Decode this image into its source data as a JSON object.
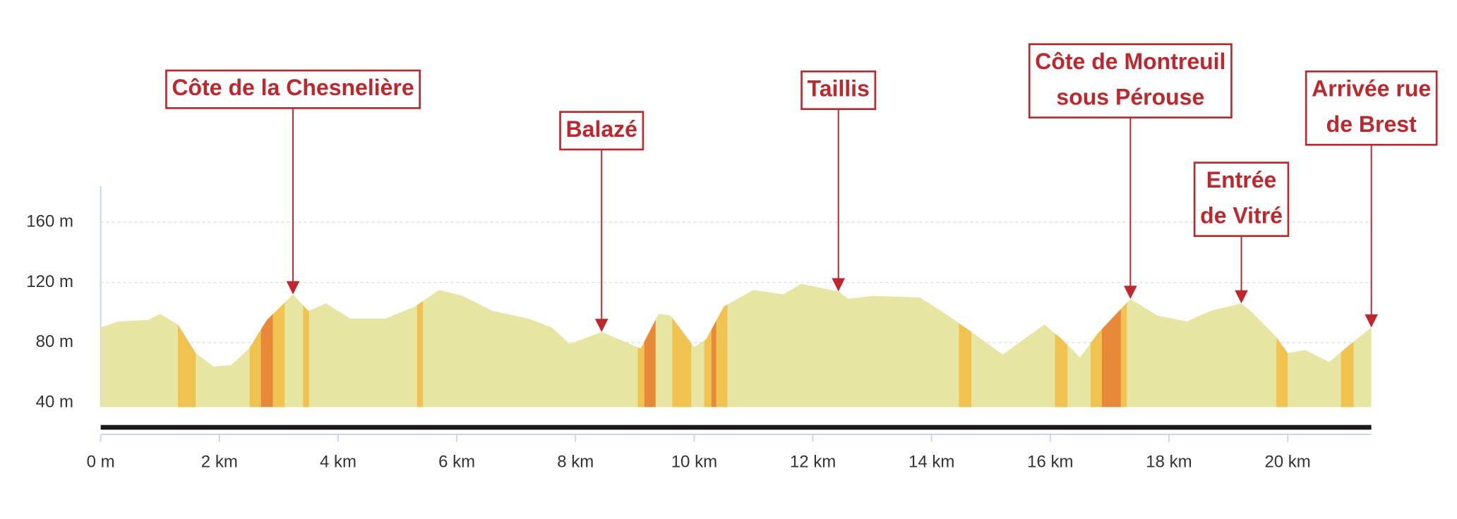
{
  "chart_data": {
    "type": "area",
    "x": [
      0,
      0.3,
      0.8,
      1.0,
      1.3,
      1.6,
      1.9,
      2.2,
      2.5,
      2.8,
      3.24,
      3.5,
      3.8,
      4.2,
      4.8,
      5.3,
      5.7,
      6.1,
      6.6,
      7.2,
      7.6,
      7.9,
      8.44,
      8.8,
      9.1,
      9.4,
      9.6,
      10.0,
      10.2,
      10.5,
      11.0,
      11.5,
      11.8,
      12.43,
      12.6,
      13.0,
      13.8,
      14.2,
      14.6,
      15.2,
      15.9,
      16.2,
      16.5,
      16.8,
      17.35,
      17.8,
      18.3,
      18.7,
      19.22,
      19.4,
      19.8,
      20.0,
      20.3,
      20.7,
      21.0,
      21.41
    ],
    "values": [
      90,
      94,
      95,
      99,
      92,
      73,
      64,
      65,
      76,
      95,
      112,
      101,
      106,
      96,
      96,
      104,
      115,
      111,
      101,
      96,
      90,
      79,
      87,
      81,
      76,
      99,
      98,
      77,
      82,
      104,
      115,
      112,
      119,
      114,
      109,
      111,
      110,
      100,
      89,
      72,
      92,
      82,
      70,
      86,
      109,
      98,
      94,
      101,
      106,
      100,
      84,
      73,
      75,
      67,
      77,
      90
    ],
    "color": "#e7e5a2",
    "segments": [
      {
        "x0": 1.3,
        "x1": 1.6,
        "color": "#f0c250"
      },
      {
        "x0": 2.51,
        "x1": 2.7,
        "color": "#f0c250"
      },
      {
        "x0": 2.7,
        "x1": 2.9,
        "color": "#e8893a"
      },
      {
        "x0": 2.9,
        "x1": 3.1,
        "color": "#f0c250"
      },
      {
        "x0": 3.41,
        "x1": 3.51,
        "color": "#f0c250"
      },
      {
        "x0": 5.33,
        "x1": 5.43,
        "color": "#f0c250"
      },
      {
        "x0": 9.05,
        "x1": 9.16,
        "color": "#f0c250"
      },
      {
        "x0": 9.16,
        "x1": 9.35,
        "color": "#e8893a"
      },
      {
        "x0": 9.63,
        "x1": 9.95,
        "color": "#f0c250"
      },
      {
        "x0": 10.17,
        "x1": 10.29,
        "color": "#f0c250"
      },
      {
        "x0": 10.29,
        "x1": 10.37,
        "color": "#e8893a"
      },
      {
        "x0": 10.37,
        "x1": 10.56,
        "color": "#f0c250"
      },
      {
        "x0": 14.46,
        "x1": 14.67,
        "color": "#f0c250"
      },
      {
        "x0": 16.08,
        "x1": 16.29,
        "color": "#f0c250"
      },
      {
        "x0": 16.68,
        "x1": 16.87,
        "color": "#f0c250"
      },
      {
        "x0": 16.87,
        "x1": 17.19,
        "color": "#e8893a"
      },
      {
        "x0": 17.19,
        "x1": 17.29,
        "color": "#f0c250"
      },
      {
        "x0": 19.81,
        "x1": 20.0,
        "color": "#f0c250"
      },
      {
        "x0": 20.9,
        "x1": 21.11,
        "color": "#f0c250"
      }
    ],
    "annotations": [
      {
        "lines": [
          "Côte de la Chesnelière"
        ],
        "x": 3.24,
        "y": 112
      },
      {
        "lines": [
          "Balazé"
        ],
        "x": 8.44,
        "y": 87
      },
      {
        "lines": [
          "Taillis"
        ],
        "x": 12.43,
        "y": 114
      },
      {
        "lines": [
          "Côte de Montreuil",
          "sous Pérouse"
        ],
        "x": 17.35,
        "y": 109
      },
      {
        "lines": [
          "Entrée",
          "de Vitré"
        ],
        "x": 19.22,
        "y": 106
      },
      {
        "lines": [
          "Arrivée rue",
          "de Brest"
        ],
        "x": 21.41,
        "y": 90
      }
    ],
    "annotation_color": "#c0272d",
    "xlim": [
      0,
      21.41
    ],
    "ylim": [
      37,
      184
    ],
    "xticks": [
      {
        "value": 0,
        "label": "0 m"
      },
      {
        "value": 2,
        "label": "2 km"
      },
      {
        "value": 4,
        "label": "4 km"
      },
      {
        "value": 6,
        "label": "6 km"
      },
      {
        "value": 8,
        "label": "8 km"
      },
      {
        "value": 10,
        "label": "10 km"
      },
      {
        "value": 12,
        "label": "12 km"
      },
      {
        "value": 14,
        "label": "14 km"
      },
      {
        "value": 16,
        "label": "16 km"
      },
      {
        "value": 18,
        "label": "18 km"
      },
      {
        "value": 20,
        "label": "20 km"
      }
    ],
    "yticks": [
      {
        "value": 40,
        "label": "40 m"
      },
      {
        "value": 80,
        "label": "80 m"
      },
      {
        "value": 120,
        "label": "120 m"
      },
      {
        "value": 160,
        "label": "160 m"
      }
    ],
    "grid": true
  }
}
